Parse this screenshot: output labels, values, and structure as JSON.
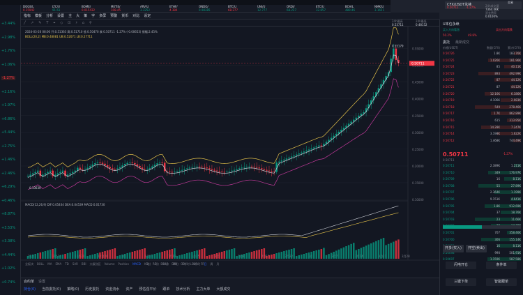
{
  "app": {
    "pair_title": "CFX/USDT永续",
    "pair_sub": "0.50711",
    "pair_change": "-1.27%",
    "trade_label": "交易"
  },
  "tickers": [
    {
      "name": "DOGE/L",
      "val": "0.15942",
      "chg": "-1.23%",
      "color": "#f23645"
    },
    {
      "name": "LTC/U",
      "val": "91.61",
      "chg": "+1.62%",
      "color": "#089981"
    },
    {
      "name": "BOME/",
      "val": "0.015432",
      "chg": "-2.4%",
      "color": "#f23645"
    },
    {
      "name": "METIS/",
      "val": "108.45",
      "chg": "-8.4%",
      "color": "#f23645"
    },
    {
      "name": "ARV/U",
      "val": "3.3252",
      "chg": "+0.2%",
      "color": "#089981"
    },
    {
      "name": "ETHF/",
      "val": "4.384",
      "chg": "-1.6%",
      "color": "#f23645"
    },
    {
      "name": "ONDO/",
      "val": "0.98385",
      "chg": "+6.4%",
      "color": "#089981"
    },
    {
      "name": "BTC/U",
      "val": "68.277",
      "chg": "-1.4%",
      "color": "#f23645"
    },
    {
      "name": "UNI/U",
      "val": "12.777",
      "chg": "+2.7%",
      "color": "#089981"
    },
    {
      "name": "ORDI/",
      "val": "68.227",
      "chg": "+2.9%",
      "color": "#089981"
    },
    {
      "name": "ETC/U",
      "val": "32.857",
      "chg": "+1.7%",
      "color": "#089981"
    },
    {
      "name": "BCH/L",
      "val": "489.46",
      "chg": "+0.9%",
      "color": "#089981"
    },
    {
      "name": "NMK/U",
      "val": "3.1651",
      "chg": "+2.4%",
      "color": "#089981"
    },
    {
      "name": "SEI/U",
      "val": "0.8887",
      "chg": "-3.5%",
      "color": "#f23645"
    },
    {
      "name": "ARB/U",
      "val": "1.6930",
      "chg": "-1.5%",
      "color": "#f23645"
    },
    {
      "name": "SAT/U",
      "val": "2.349",
      "chg": "+2.9%",
      "color": "#089981"
    },
    {
      "name": "FET/U",
      "val": "2.8497",
      "chg": "+5.8%",
      "color": "#089981"
    },
    {
      "name": "SAND/",
      "val": "0.5881",
      "chg": "-2.1%",
      "color": "#f23645"
    }
  ],
  "left_changes": [
    {
      "v": "+3.44%",
      "c": "#089981"
    },
    {
      "v": "+2.98%",
      "c": "#089981"
    },
    {
      "v": "+1.76%",
      "c": "#089981"
    },
    {
      "v": "+1.06%",
      "c": "#089981"
    },
    {
      "v": "-1.27%",
      "c": "#f23645"
    },
    {
      "v": "+2.16%",
      "c": "#089981"
    },
    {
      "v": "+1.97%",
      "c": "#089981"
    },
    {
      "v": "+6.86%",
      "c": "#089981"
    },
    {
      "v": "+5.44%",
      "c": "#089981"
    },
    {
      "v": "+2.75%",
      "c": "#089981"
    },
    {
      "v": "+1.46%",
      "c": "#089981"
    },
    {
      "v": "+2.46%",
      "c": "#089981"
    },
    {
      "v": "+6.29%",
      "c": "#089981"
    },
    {
      "v": "+0.46%",
      "c": "#089981"
    },
    {
      "v": "+8.87%",
      "c": "#089981"
    },
    {
      "v": "+3.53%",
      "c": "#089981"
    },
    {
      "v": "+3.38%",
      "c": "#089981"
    },
    {
      "v": "+4.44%",
      "c": "#089981"
    },
    {
      "v": "+1.02%",
      "c": "#089981"
    },
    {
      "v": "+0.74%",
      "c": "#089981"
    }
  ],
  "toolbar": [
    "指标",
    "模板",
    "分析",
    "设置",
    "主",
    "大",
    "策",
    "字",
    "多屏",
    "预警",
    "货币",
    "对比",
    "设定"
  ],
  "drawtools": [
    "╱",
    "↗",
    "✎",
    "T",
    "⌖",
    "◇",
    "⊡",
    "♯",
    "⌂",
    "⚲"
  ],
  "chart_info": {
    "line1": "2024-03-26 08:00  开:0.51363  高:0.51710  低:0.50470  收:0.50711  -1.27% (-0.00653)  振幅:2.45%",
    "line2": "BOLL(20,2)  MB:0.48081  UB:0.52071  LB:0.27711",
    "macd": "MACD(12,26,9)  DIF:0.05404  DEA:0.04539  MACD:0.01730",
    "high_label": "0.55179",
    "low_label": "0.13630",
    "price_tag": "0.50711"
  },
  "chart_data": {
    "type": "candlestick",
    "price_axis": [
      "0.55000",
      "0.50000",
      "0.45000",
      "0.40000",
      "0.35000",
      "0.30000",
      "0.25000",
      "0.20000",
      "0.15000",
      "0.10000"
    ],
    "x_axis": [
      "12月",
      "12月14",
      "12月21",
      "12月28",
      "1月",
      "1月11",
      "1月18",
      "1月25",
      "2月",
      "2月8",
      "2月15",
      "2月22",
      "3月",
      "3月7",
      "3月14",
      "3月21",
      "3月28"
    ],
    "candles_hint": "daily CFX/USDT; range 0.14 to 0.55"
  },
  "indicator_bar": [
    "全板块",
    "BOLL",
    "MA",
    "EMA",
    "TD",
    "SAR",
    "BBI",
    "大级别区",
    "Volume",
    "Position",
    "MACD",
    "KDJ",
    "RSI",
    "BRAR",
    "DMI",
    "OBV",
    "LSUR",
    "FR"
  ],
  "periods": [
    "1分",
    "5分",
    "15分",
    "30分",
    "1小时",
    "4小时",
    "日",
    "周",
    "月"
  ],
  "bottom_tabs": [
    "持仓(0)",
    "当前委托(0)",
    "策略(0)",
    "历史委托",
    "资金流水",
    "资产",
    "预估强平价",
    "跟单",
    "技术分析",
    "主力大单",
    "大额成交"
  ],
  "right_panel": {
    "tabs": [
      "委托",
      "最新成交"
    ],
    "price_col": "价格(USDT)",
    "qty_col": "数量(CFX)",
    "total_col": "累计(CFX)",
    "asks": [
      {
        "p": "0.50726",
        "q": "1.8K",
        "t": "183.76K"
      },
      {
        "p": "0.50725",
        "q": "1.026K",
        "t": "181.96K"
      },
      {
        "p": "0.50724",
        "q": "85",
        "t": "40.11K"
      },
      {
        "p": "0.50723",
        "q": "893",
        "t": "492.99K"
      },
      {
        "p": "0.50722",
        "q": "87",
        "t": "44.12K"
      },
      {
        "p": "0.50721",
        "q": "87",
        "t": "44.12K"
      },
      {
        "p": "0.50720",
        "q": "12.16K",
        "t": "6.186K"
      },
      {
        "p": "0.50719",
        "q": "4.106K",
        "t": "2.083K"
      },
      {
        "p": "0.50718",
        "q": "549",
        "t": "278.46K"
      },
      {
        "p": "0.50717",
        "q": "1.7K",
        "t": "862.89K"
      },
      {
        "p": "0.50716",
        "q": "615",
        "t": "313.95K"
      },
      {
        "p": "0.50715",
        "q": "14.28K",
        "t": "7.247K"
      },
      {
        "p": "0.50714",
        "q": "3.198K",
        "t": "1.622K"
      },
      {
        "p": "0.50712",
        "q": "1.468K",
        "t": "744.49K"
      }
    ],
    "last_price": "0.50711",
    "last_change": "-1.27%",
    "last_sub": "0.50711",
    "bids": [
      {
        "p": "0.50711",
        "q": "2.389K",
        "t": "1.211K"
      },
      {
        "p": "0.50710",
        "q": "349",
        "t": "176.97K"
      },
      {
        "p": "0.50709",
        "q": "16",
        "t": "8.11K"
      },
      {
        "p": "0.50708",
        "q": "55",
        "t": "27.89K"
      },
      {
        "p": "0.50707",
        "q": "2.364K",
        "t": "1.199K"
      },
      {
        "p": "0.50706",
        "q": "9.151K",
        "t": "4.641K"
      },
      {
        "p": "0.50705",
        "q": "1.8K",
        "t": "912.69K"
      },
      {
        "p": "0.50704",
        "q": "37",
        "t": "18.76K"
      },
      {
        "p": "0.50703",
        "q": "23",
        "t": "11.66K"
      },
      {
        "p": "0.50702",
        "q": "29",
        "t": "14.70K"
      },
      {
        "p": "0.50701",
        "q": "707",
        "t": "358.46K"
      },
      {
        "p": "0.50700",
        "q": "306",
        "t": "155.14K"
      },
      {
        "p": "0.50699",
        "q": "16",
        "t": "8.11K"
      },
      {
        "p": "0.50698",
        "q": "990",
        "t": "501.91K"
      },
      {
        "p": "0.50697",
        "q": "1.159K",
        "t": "587.58K"
      }
    ],
    "buy_ratio": "50.2%",
    "sell_ratio": "49.8%",
    "buttons": [
      "开多(买入)",
      "开空(卖出)",
      "闪电开仓",
      "条件单",
      "三键下单",
      "智能跟单"
    ],
    "head_labels": [
      "24h最高",
      "24h最低",
      "24h成交量",
      "资金费率"
    ],
    "head_values": [
      "0.53711",
      "0.48152",
      "7364.46K",
      "0.0100%"
    ],
    "mode_label": "U本位永续",
    "flag_buy": "买入方向看涨",
    "flag_sell": "卖出方向看跌"
  }
}
